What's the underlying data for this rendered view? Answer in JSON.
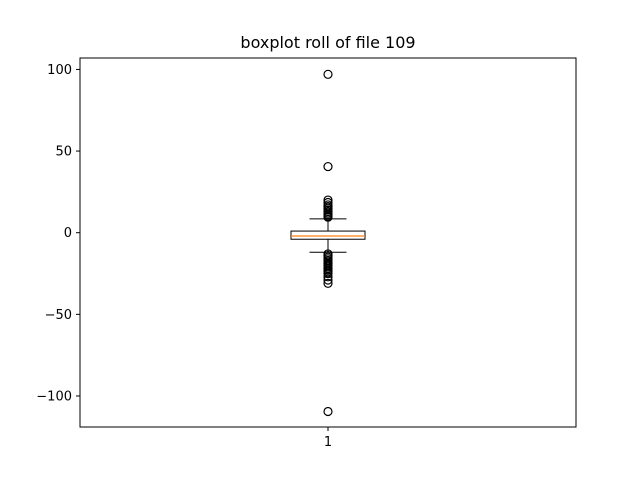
{
  "chart_data": {
    "type": "boxplot",
    "title": "boxplot roll of file 109",
    "xlabel": "",
    "ylabel": "",
    "categories": [
      "1"
    ],
    "ylim": [
      -119,
      107
    ],
    "yticks": [
      100,
      50,
      0,
      -50,
      -100
    ],
    "ytick_labels": [
      "100",
      "50",
      "0",
      "−50",
      "−100"
    ],
    "grid": false,
    "boxes": [
      {
        "name": "1",
        "q1": -4,
        "median": -2,
        "q3": 1,
        "whisker_low": -12,
        "whisker_high": 8.5,
        "outliers": [
          97,
          40.5,
          20,
          18.5,
          17,
          16,
          15,
          14,
          13,
          12,
          11,
          10,
          9.5,
          -13,
          -14,
          -15,
          -16,
          -17,
          -18,
          -19,
          -20,
          -21,
          -22,
          -23,
          -24,
          -25,
          -27,
          -29,
          -31,
          -109.5
        ]
      }
    ],
    "colors": {
      "box": "#000000",
      "median": "#ff7f0e",
      "outlier_face": "none"
    }
  }
}
